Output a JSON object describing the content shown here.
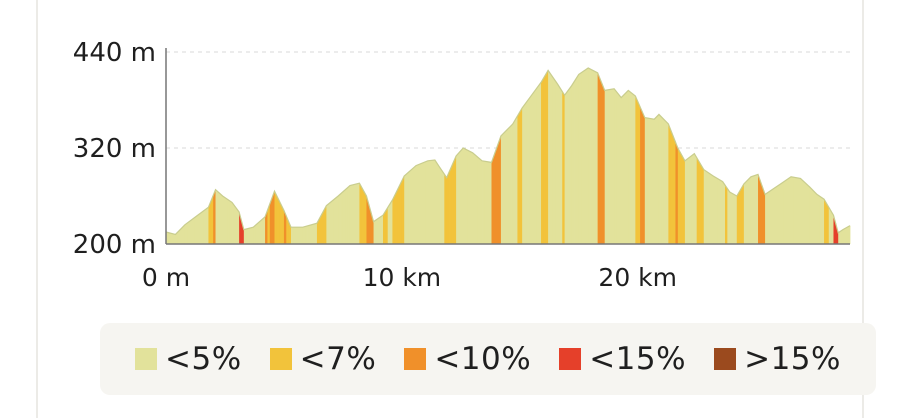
{
  "chart_data": {
    "type": "area",
    "xlabel": "",
    "ylabel": "",
    "x_unit": "km",
    "y_unit": "m",
    "xlim": [
      0,
      29
    ],
    "ylim": [
      200,
      440
    ],
    "x_ticks": [
      {
        "value": 0,
        "label": "0 m"
      },
      {
        "value": 10,
        "label": "10 km"
      },
      {
        "value": 20,
        "label": "20 km"
      }
    ],
    "y_ticks": [
      {
        "value": 440,
        "label": "440 m"
      },
      {
        "value": 320,
        "label": "320 m"
      },
      {
        "value": 200,
        "label": "200 m"
      }
    ],
    "grid": true,
    "legend_position": "bottom",
    "legend": [
      {
        "label": "<5%",
        "color": "#e2e29b"
      },
      {
        "label": "<7%",
        "color": "#f2c33b"
      },
      {
        "label": "<10%",
        "color": "#f0902a"
      },
      {
        "label": "<15%",
        "color": "#e5402a"
      },
      {
        "label": ">15%",
        "color": "#9b4a1e"
      }
    ],
    "profile": [
      [
        0.0,
        215
      ],
      [
        0.4,
        212
      ],
      [
        0.8,
        224
      ],
      [
        1.3,
        235
      ],
      [
        1.8,
        246
      ],
      [
        2.1,
        268
      ],
      [
        2.4,
        260
      ],
      [
        2.8,
        252
      ],
      [
        3.1,
        240
      ],
      [
        3.3,
        218
      ],
      [
        3.7,
        221
      ],
      [
        4.2,
        234
      ],
      [
        4.6,
        266
      ],
      [
        5.0,
        242
      ],
      [
        5.3,
        221
      ],
      [
        5.8,
        221
      ],
      [
        6.4,
        226
      ],
      [
        6.8,
        248
      ],
      [
        7.3,
        260
      ],
      [
        7.8,
        273
      ],
      [
        8.2,
        276
      ],
      [
        8.5,
        260
      ],
      [
        8.8,
        228
      ],
      [
        9.2,
        236
      ],
      [
        9.6,
        255
      ],
      [
        10.1,
        285
      ],
      [
        10.6,
        298
      ],
      [
        11.1,
        304
      ],
      [
        11.4,
        305
      ],
      [
        11.6,
        296
      ],
      [
        11.9,
        283
      ],
      [
        12.3,
        310
      ],
      [
        12.6,
        320
      ],
      [
        13.0,
        314
      ],
      [
        13.4,
        304
      ],
      [
        13.8,
        302
      ],
      [
        14.2,
        335
      ],
      [
        14.7,
        350
      ],
      [
        15.1,
        370
      ],
      [
        15.5,
        386
      ],
      [
        15.9,
        402
      ],
      [
        16.2,
        417
      ],
      [
        16.6,
        400
      ],
      [
        16.9,
        386
      ],
      [
        17.2,
        398
      ],
      [
        17.5,
        412
      ],
      [
        17.9,
        420
      ],
      [
        18.3,
        414
      ],
      [
        18.6,
        392
      ],
      [
        19.0,
        394
      ],
      [
        19.3,
        383
      ],
      [
        19.6,
        392
      ],
      [
        19.9,
        385
      ],
      [
        20.3,
        358
      ],
      [
        20.7,
        356
      ],
      [
        20.9,
        362
      ],
      [
        21.3,
        350
      ],
      [
        21.7,
        320
      ],
      [
        22.0,
        304
      ],
      [
        22.4,
        313
      ],
      [
        22.8,
        293
      ],
      [
        23.2,
        285
      ],
      [
        23.6,
        278
      ],
      [
        23.9,
        265
      ],
      [
        24.2,
        260
      ],
      [
        24.5,
        275
      ],
      [
        24.8,
        284
      ],
      [
        25.1,
        287
      ],
      [
        25.4,
        262
      ],
      [
        25.8,
        270
      ],
      [
        26.1,
        276
      ],
      [
        26.5,
        284
      ],
      [
        26.9,
        282
      ],
      [
        27.3,
        271
      ],
      [
        27.6,
        262
      ],
      [
        27.9,
        256
      ],
      [
        28.3,
        236
      ],
      [
        28.5,
        214
      ],
      [
        28.7,
        218
      ],
      [
        29.0,
        223
      ]
    ]
  }
}
